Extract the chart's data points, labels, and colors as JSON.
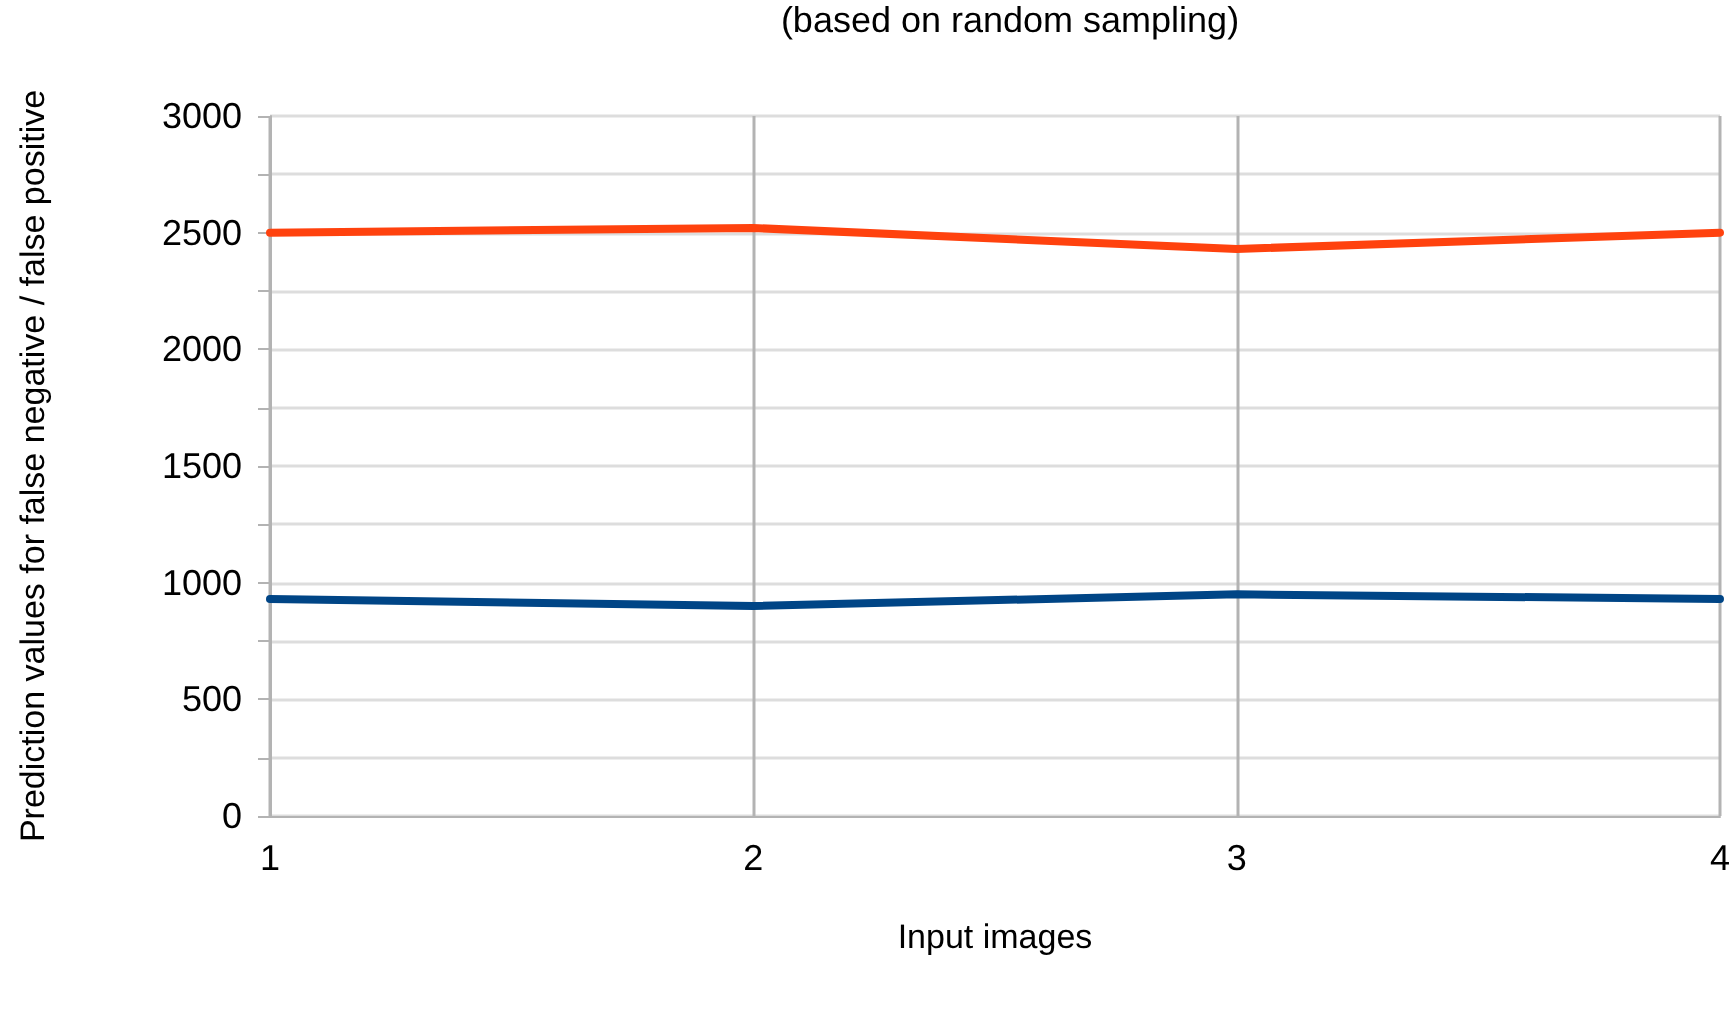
{
  "chart_data": {
    "type": "line",
    "title": "(based on random sampling)",
    "xlabel": "Input images",
    "ylabel": "Prediction values for false negative / false positive",
    "x": [
      1,
      2,
      3,
      4
    ],
    "series": [
      {
        "color": "#ff420e",
        "values": [
          2500,
          2520,
          2430,
          2500
        ]
      },
      {
        "color": "#004586",
        "values": [
          930,
          900,
          950,
          930
        ]
      }
    ],
    "xlim": [
      1,
      4
    ],
    "xticks": [
      1,
      2,
      3,
      4
    ],
    "ylim": [
      0,
      3000
    ],
    "yticks": [
      0,
      {
        "value": 250,
        "label": null
      },
      500,
      {
        "value": 750,
        "label": null
      },
      1000,
      {
        "value": 1250,
        "label": null
      },
      1500,
      {
        "value": 1750,
        "label": null
      },
      2000,
      {
        "value": 2250,
        "label": null
      },
      2500,
      {
        "value": 2750,
        "label": null
      },
      3000
    ],
    "grid": true,
    "marker": "none",
    "line_style": "solid"
  }
}
